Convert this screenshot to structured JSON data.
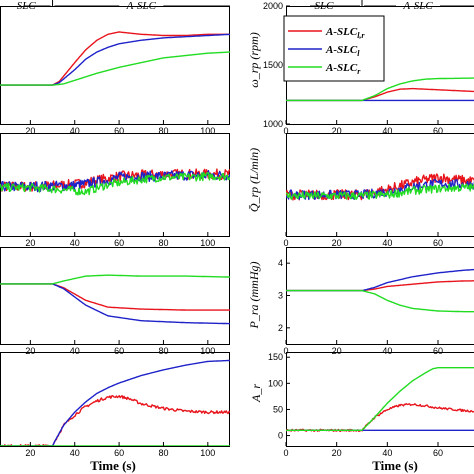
{
  "chart_data": [
    {
      "type": "line",
      "panel": "left-1",
      "x_ticks": [
        "20",
        "40",
        "60",
        "80",
        "100"
      ],
      "xlim": [
        0,
        110
      ],
      "ylim": [
        0,
        1
      ],
      "phases": [
        "SLC",
        "A-SLC"
      ],
      "series": [
        {
          "color": "#e8141c",
          "x": [
            0,
            30,
            33,
            40,
            45,
            50,
            55,
            60,
            70,
            80,
            90,
            100,
            110
          ],
          "y": [
            0.33,
            0.33,
            0.36,
            0.52,
            0.63,
            0.71,
            0.76,
            0.78,
            0.76,
            0.75,
            0.75,
            0.76,
            0.76
          ]
        },
        {
          "color": "#1e22c8",
          "x": [
            0,
            30,
            33,
            40,
            45,
            50,
            55,
            60,
            70,
            80,
            90,
            100,
            110
          ],
          "y": [
            0.33,
            0.33,
            0.35,
            0.46,
            0.55,
            0.61,
            0.65,
            0.68,
            0.71,
            0.73,
            0.74,
            0.75,
            0.76
          ]
        },
        {
          "color": "#22dc22",
          "x": [
            0,
            30,
            35,
            40,
            50,
            60,
            70,
            80,
            90,
            100,
            110
          ],
          "y": [
            0.33,
            0.33,
            0.34,
            0.37,
            0.43,
            0.48,
            0.52,
            0.56,
            0.58,
            0.6,
            0.61
          ]
        }
      ]
    },
    {
      "type": "line",
      "panel": "left-2",
      "x_ticks": [
        "20",
        "40",
        "60",
        "80",
        "100"
      ],
      "xlim": [
        0,
        110
      ],
      "ylim": [
        0,
        1
      ],
      "series": [
        {
          "color": "#e8141c",
          "x": [
            0,
            20,
            40,
            55,
            60,
            70,
            80,
            90,
            100,
            110
          ],
          "y": [
            0.48,
            0.48,
            0.5,
            0.56,
            0.58,
            0.59,
            0.6,
            0.6,
            0.6,
            0.6
          ],
          "noise": 0.05
        },
        {
          "color": "#1e22c8",
          "x": [
            0,
            20,
            40,
            55,
            60,
            70,
            80,
            90,
            100,
            110
          ],
          "y": [
            0.48,
            0.48,
            0.49,
            0.54,
            0.57,
            0.58,
            0.58,
            0.59,
            0.59,
            0.59
          ],
          "noise": 0.05
        },
        {
          "color": "#22dc22",
          "x": [
            0,
            20,
            35,
            45,
            55,
            70,
            80,
            90,
            100,
            110
          ],
          "y": [
            0.47,
            0.47,
            0.45,
            0.43,
            0.5,
            0.55,
            0.57,
            0.57,
            0.58,
            0.58
          ],
          "noise": 0.04
        }
      ]
    },
    {
      "type": "line",
      "panel": "left-3",
      "x_ticks": [
        "20",
        "40",
        "60",
        "80",
        "100"
      ],
      "xlim": [
        0,
        110
      ],
      "ylim": [
        0,
        1
      ],
      "series": [
        {
          "color": "#e8141c",
          "x": [
            0,
            30,
            35,
            45,
            55,
            70,
            90,
            110
          ],
          "y": [
            0.62,
            0.62,
            0.58,
            0.45,
            0.38,
            0.36,
            0.35,
            0.35
          ]
        },
        {
          "color": "#1e22c8",
          "x": [
            0,
            30,
            35,
            45,
            55,
            70,
            90,
            110
          ],
          "y": [
            0.62,
            0.62,
            0.57,
            0.4,
            0.29,
            0.24,
            0.22,
            0.21
          ]
        },
        {
          "color": "#22dc22",
          "x": [
            0,
            30,
            35,
            45,
            55,
            70,
            90,
            110
          ],
          "y": [
            0.62,
            0.62,
            0.65,
            0.7,
            0.71,
            0.7,
            0.7,
            0.69
          ]
        }
      ]
    },
    {
      "type": "line",
      "panel": "left-4",
      "x_ticks": [
        "20",
        "40",
        "60",
        "80",
        "100"
      ],
      "xlim": [
        0,
        110
      ],
      "ylim": [
        0,
        1
      ],
      "series": [
        {
          "color": "#e8141c",
          "x": [
            0,
            30,
            31,
            35,
            40,
            45,
            50,
            55,
            60,
            65,
            70,
            80,
            90,
            100,
            110
          ],
          "y": [
            0.0,
            0.0,
            0.05,
            0.22,
            0.33,
            0.42,
            0.48,
            0.52,
            0.53,
            0.5,
            0.45,
            0.4,
            0.37,
            0.36,
            0.36
          ],
          "noise": 0.015
        },
        {
          "color": "#1e22c8",
          "x": [
            0,
            30,
            31,
            35,
            40,
            45,
            50,
            55,
            60,
            70,
            80,
            90,
            100,
            110
          ],
          "y": [
            0.0,
            0.0,
            0.05,
            0.22,
            0.36,
            0.47,
            0.56,
            0.62,
            0.67,
            0.75,
            0.81,
            0.86,
            0.9,
            0.91
          ]
        },
        {
          "color": "#22dc22",
          "x": [
            0,
            110
          ],
          "y": [
            0.0,
            0.0
          ]
        }
      ]
    },
    {
      "type": "line",
      "panel": "right-1",
      "ylabel": "ω_rp (rpm)",
      "y_ticks": [
        "1000",
        "1500",
        "2000"
      ],
      "x_ticks": [
        "0",
        "20",
        "40",
        "60",
        "80"
      ],
      "xlim": [
        0,
        90
      ],
      "ylim": [
        1000,
        2000
      ],
      "phases": [
        "SLC",
        "A-SLC"
      ],
      "series": [
        {
          "name": "A-SLC_l,r",
          "color": "#e8141c",
          "x": [
            0,
            30,
            35,
            40,
            45,
            50,
            60,
            70,
            80,
            90
          ],
          "y": [
            1200,
            1200,
            1230,
            1270,
            1295,
            1300,
            1290,
            1280,
            1270,
            1265
          ]
        },
        {
          "name": "A-SLC_l",
          "color": "#1e22c8",
          "x": [
            0,
            90
          ],
          "y": [
            1200,
            1200
          ]
        },
        {
          "name": "A-SLC_r",
          "color": "#22dc22",
          "x": [
            0,
            30,
            35,
            40,
            45,
            50,
            55,
            60,
            70,
            80,
            90
          ],
          "y": [
            1200,
            1200,
            1240,
            1300,
            1340,
            1365,
            1380,
            1385,
            1388,
            1390,
            1390
          ]
        }
      ]
    },
    {
      "type": "line",
      "panel": "right-2",
      "ylabel": "Q̄_rp (L/min)",
      "x_ticks": [
        "0",
        "20",
        "40",
        "60",
        "80"
      ],
      "xlim": [
        0,
        90
      ],
      "ylim": [
        0,
        1
      ],
      "series": [
        {
          "name": "A-SLC_l,r",
          "color": "#e8141c",
          "x": [
            0,
            30,
            40,
            50,
            60,
            70,
            80,
            90
          ],
          "y": [
            0.4,
            0.4,
            0.45,
            0.52,
            0.57,
            0.54,
            0.52,
            0.53
          ],
          "noise": 0.05
        },
        {
          "name": "A-SLC_l",
          "color": "#1e22c8",
          "x": [
            0,
            30,
            40,
            50,
            60,
            70,
            80,
            90
          ],
          "y": [
            0.4,
            0.4,
            0.43,
            0.48,
            0.51,
            0.5,
            0.5,
            0.5
          ],
          "noise": 0.045
        },
        {
          "name": "A-SLC_r",
          "color": "#22dc22",
          "x": [
            0,
            30,
            40,
            50,
            60,
            70,
            80,
            90
          ],
          "y": [
            0.39,
            0.39,
            0.4,
            0.44,
            0.46,
            0.47,
            0.47,
            0.48
          ],
          "noise": 0.04
        }
      ]
    },
    {
      "type": "line",
      "panel": "right-3",
      "ylabel": "P_ra (mmHg)",
      "y_ticks": [
        "2",
        "3",
        "4"
      ],
      "x_ticks": [
        "0",
        "20",
        "40",
        "60",
        "80"
      ],
      "xlim": [
        0,
        90
      ],
      "ylim": [
        1.5,
        4.5
      ],
      "series": [
        {
          "name": "A-SLC_l,r",
          "color": "#e8141c",
          "x": [
            0,
            30,
            35,
            40,
            50,
            60,
            70,
            80,
            90
          ],
          "y": [
            3.15,
            3.15,
            3.2,
            3.28,
            3.35,
            3.42,
            3.45,
            3.46,
            3.47
          ]
        },
        {
          "name": "A-SLC_l",
          "color": "#1e22c8",
          "x": [
            0,
            30,
            35,
            40,
            50,
            60,
            70,
            80,
            90
          ],
          "y": [
            3.15,
            3.15,
            3.25,
            3.4,
            3.58,
            3.7,
            3.78,
            3.83,
            3.86
          ]
        },
        {
          "name": "A-SLC_r",
          "color": "#22dc22",
          "x": [
            0,
            30,
            35,
            40,
            45,
            50,
            60,
            70,
            80,
            90
          ],
          "y": [
            3.15,
            3.15,
            3.05,
            2.85,
            2.7,
            2.6,
            2.52,
            2.5,
            2.5,
            2.5
          ]
        }
      ]
    },
    {
      "type": "line",
      "panel": "right-4",
      "ylabel": "A_r",
      "xlabel": "Time (s)",
      "y_ticks": [
        "0",
        "50",
        "100",
        "150"
      ],
      "x_ticks": [
        "0",
        "20",
        "40",
        "60",
        "80"
      ],
      "xlim": [
        0,
        90
      ],
      "ylim": [
        -20,
        160
      ],
      "series": [
        {
          "name": "A-SLC_l,r",
          "color": "#e8141c",
          "x": [
            0,
            30,
            31,
            35,
            40,
            45,
            50,
            55,
            60,
            70,
            80,
            90
          ],
          "y": [
            10,
            10,
            15,
            35,
            50,
            58,
            60,
            57,
            53,
            48,
            45,
            44
          ],
          "noise": 2
        },
        {
          "name": "A-SLC_l",
          "color": "#1e22c8",
          "x": [
            0,
            90
          ],
          "y": [
            10,
            10
          ]
        },
        {
          "name": "A-SLC_r",
          "color": "#22dc22",
          "x": [
            0,
            30,
            35,
            40,
            45,
            50,
            55,
            58,
            60,
            70,
            80,
            90
          ],
          "y": [
            10,
            10,
            35,
            62,
            85,
            105,
            120,
            128,
            130,
            130,
            130,
            130
          ]
        }
      ]
    }
  ],
  "left_xlabel": "Time (s)",
  "legend": {
    "entries": [
      {
        "label": "A-SLC",
        "sub": "l,r",
        "color": "#e8141c"
      },
      {
        "label": "A-SLC",
        "sub": "l",
        "color": "#1e22c8"
      },
      {
        "label": "A-SLC",
        "sub": "r",
        "color": "#22dc22"
      }
    ]
  }
}
